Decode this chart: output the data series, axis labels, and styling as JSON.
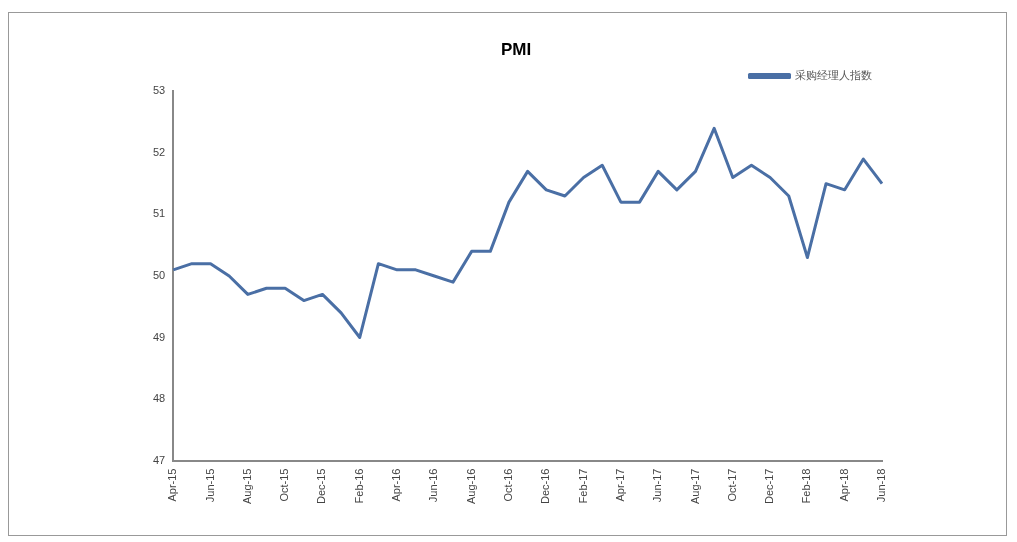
{
  "chart_data": {
    "type": "line",
    "title": "PMI",
    "categories": [
      "Apr-15",
      null,
      "Jun-15",
      null,
      "Aug-15",
      null,
      "Oct-15",
      null,
      "Dec-15",
      null,
      "Feb-16",
      null,
      "Apr-16",
      null,
      "Jun-16",
      null,
      "Aug-16",
      null,
      "Oct-16",
      null,
      "Dec-16",
      null,
      "Feb-17",
      null,
      "Apr-17",
      null,
      "Jun-17",
      null,
      "Aug-17",
      null,
      "Oct-17",
      null,
      "Dec-17",
      null,
      "Feb-18",
      null,
      "Apr-18",
      null,
      "Jun-18"
    ],
    "series": [
      {
        "name": "采购经理人指数",
        "color": "#4a6fa5",
        "values": [
          50.1,
          50.2,
          50.2,
          50.0,
          49.7,
          49.8,
          49.8,
          49.6,
          49.7,
          49.4,
          49.0,
          50.2,
          50.1,
          50.1,
          50.0,
          49.9,
          50.4,
          50.4,
          51.2,
          51.7,
          51.4,
          51.3,
          51.6,
          51.8,
          51.2,
          51.2,
          51.7,
          51.4,
          51.7,
          52.4,
          51.6,
          51.8,
          51.6,
          51.3,
          50.3,
          51.5,
          51.4,
          51.9,
          51.5
        ]
      }
    ],
    "ylim": [
      47,
      53
    ],
    "yticks": [
      47,
      48,
      49,
      50,
      51,
      52,
      53
    ],
    "grid": false,
    "legend": "top right",
    "marker": "none",
    "line_style": "solid"
  }
}
